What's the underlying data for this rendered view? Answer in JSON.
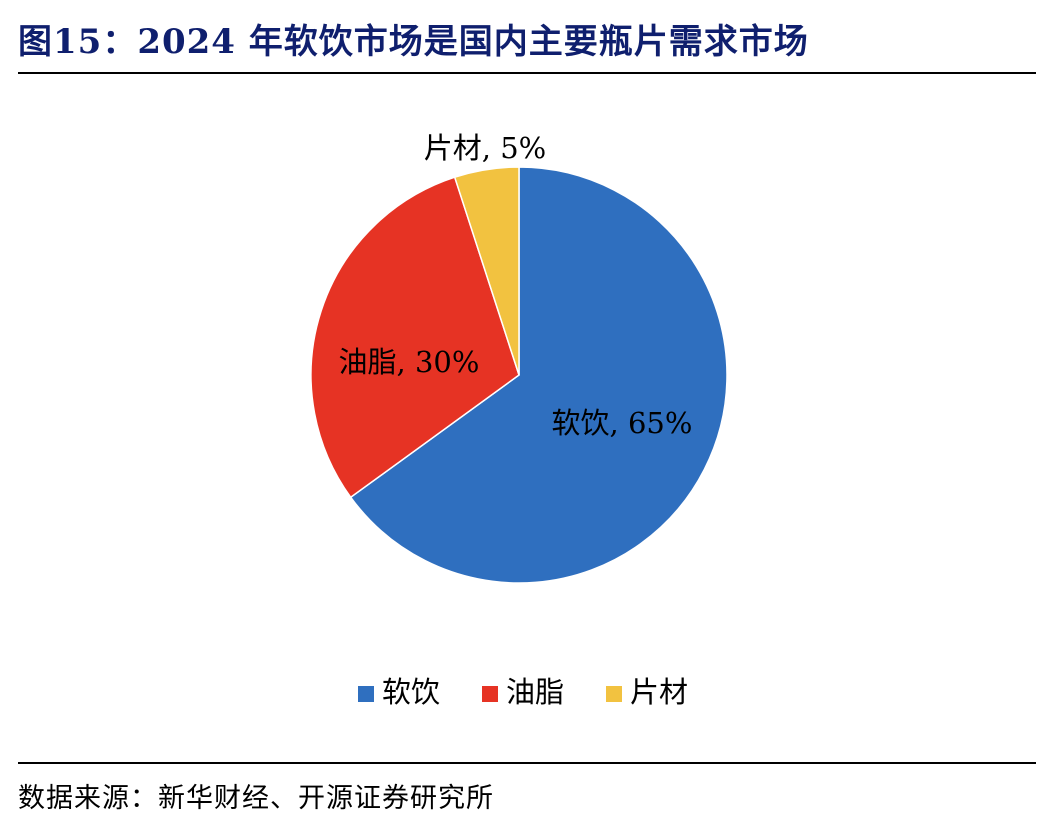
{
  "title": "图15：2024 年软饮市场是国内主要瓶片需求市场",
  "source": "数据来源：新华财经、开源证券研究所",
  "chart_data": {
    "type": "pie",
    "title": "",
    "slices": [
      {
        "label": "软饮",
        "value": 65,
        "data_label": "软饮, 65%",
        "color": "#2f6fbf"
      },
      {
        "label": "油脂",
        "value": 30,
        "data_label": "油脂, 30%",
        "color": "#e63324"
      },
      {
        "label": "片材",
        "value": 5,
        "data_label": "片材, 5%",
        "color": "#f2c240"
      }
    ],
    "legend": {
      "position": "bottom",
      "entries": [
        "软饮",
        "油脂",
        "片材"
      ]
    },
    "start_angle": "12 o'clock",
    "direction": "clockwise"
  }
}
